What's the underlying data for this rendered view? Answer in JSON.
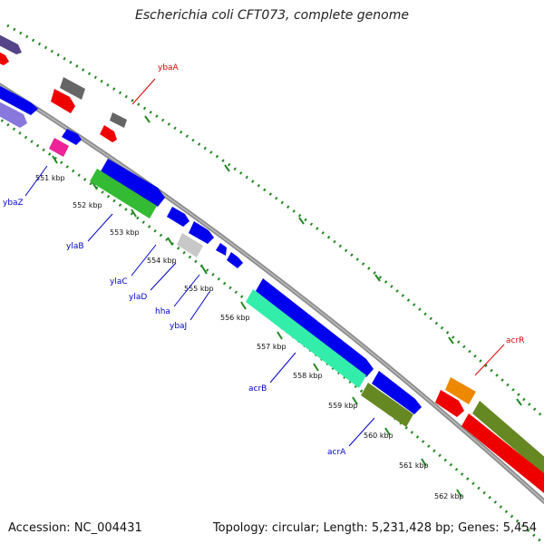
{
  "title": "Escherichia coli CFT073, complete genome",
  "footer": {
    "accession": "Accession: NC_004431",
    "stats": "Topology: circular; Length: 5,231,428 bp; Genes: 5,454"
  },
  "ticks": [
    "551 kbp",
    "552 kbp",
    "553 kbp",
    "554 kbp",
    "555 kbp",
    "556 kbp",
    "557 kbp",
    "558 kbp",
    "559 kbp",
    "560 kbp",
    "561 kbp",
    "562 kbp"
  ],
  "gene_labels": [
    {
      "name": "ybaA",
      "color": "#dd0000"
    },
    {
      "name": "ybaZ",
      "color": "#0000cc"
    },
    {
      "name": "ylaB",
      "color": "#0000cc"
    },
    {
      "name": "ylaC",
      "color": "#0000cc"
    },
    {
      "name": "ylaD",
      "color": "#0000cc"
    },
    {
      "name": "hha",
      "color": "#0000cc"
    },
    {
      "name": "ybaJ",
      "color": "#0000cc"
    },
    {
      "name": "acrB",
      "color": "#0000cc"
    },
    {
      "name": "acrA",
      "color": "#0000cc"
    },
    {
      "name": "acrR",
      "color": "#dd0000"
    }
  ],
  "colors": {
    "backbone": "#8c8c8c",
    "tick_line": "#228822",
    "cds_blue": "#0000ee",
    "rna_red": "#ee0000",
    "gray_feature": "#666666",
    "light_gray_feature": "#c8c8c8",
    "green_feature": "#33bb33",
    "mint_feature": "#33eeaa",
    "olive_feature": "#668822",
    "magenta_feature": "#ee2299",
    "orange_feature": "#ee8800",
    "purple_feature": "#554488",
    "lavender_feature": "#8877dd"
  }
}
